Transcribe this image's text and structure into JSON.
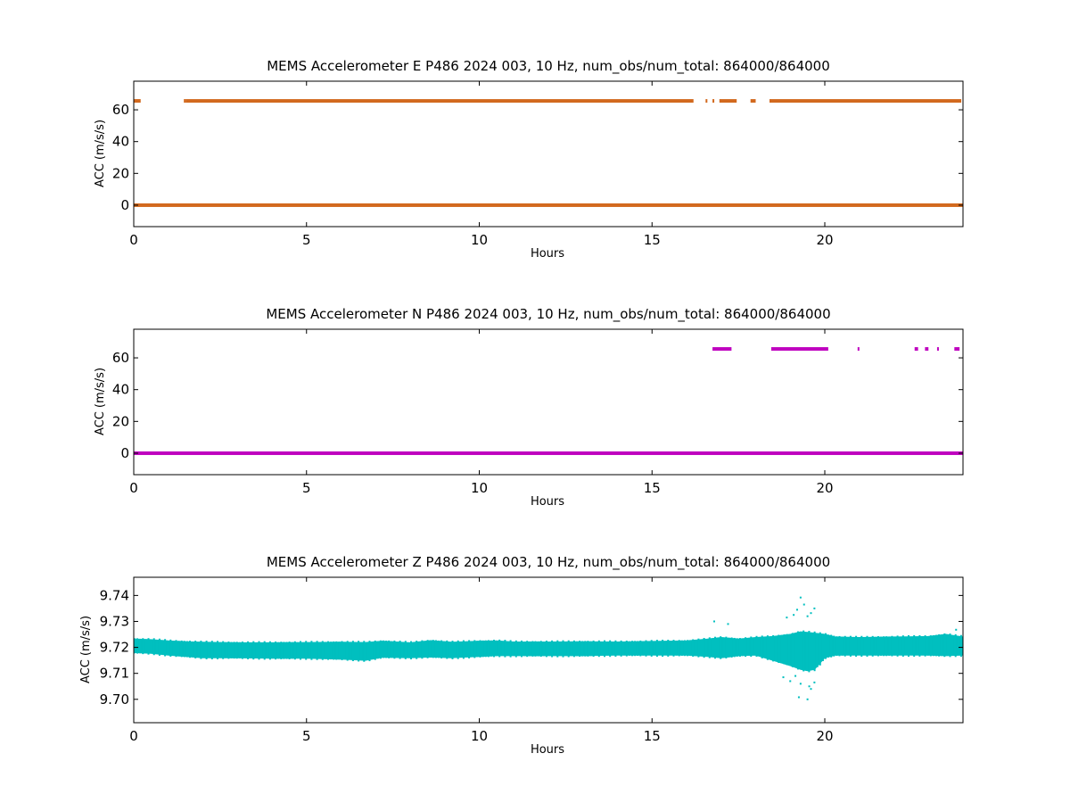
{
  "chart_data": [
    {
      "type": "scatter",
      "title": "MEMS Accelerometer E P486 2024 003, 10 Hz, num_obs/num_total: 864000/864000",
      "xlabel": "Hours",
      "ylabel": "ACC (m/s/s)",
      "xlim": [
        0,
        24
      ],
      "ylim": [
        -13.5,
        78
      ],
      "xticks": [
        "0",
        "5",
        "10",
        "15",
        "20"
      ],
      "yticks": [
        "0",
        "20",
        "40",
        "60"
      ],
      "grid": false,
      "color": "#d2691e",
      "series": [
        {
          "description": "baseline band",
          "segments": [
            {
              "x": [
                0,
                24
              ],
              "y": 0.0
            }
          ]
        },
        {
          "description": "upper band",
          "segments": [
            {
              "x": [
                0.0,
                0.2
              ],
              "y": 65.6
            },
            {
              "x": [
                1.45,
                1.5
              ],
              "y": 65.6
            },
            {
              "x": [
                1.5,
                16.2
              ],
              "y": 65.6
            },
            {
              "x": [
                16.55,
                16.6
              ],
              "y": 65.6
            },
            {
              "x": [
                16.75,
                16.8
              ],
              "y": 65.6
            },
            {
              "x": [
                16.95,
                17.45
              ],
              "y": 65.6
            },
            {
              "x": [
                17.85,
                18.0
              ],
              "y": 65.6
            },
            {
              "x": [
                18.4,
                23.95
              ],
              "y": 65.6
            }
          ]
        }
      ]
    },
    {
      "type": "scatter",
      "title": "MEMS Accelerometer N P486 2024 003, 10 Hz, num_obs/num_total: 864000/864000",
      "xlabel": "Hours",
      "ylabel": "ACC (m/s/s)",
      "xlim": [
        0,
        24
      ],
      "ylim": [
        -13.5,
        78
      ],
      "xticks": [
        "0",
        "5",
        "10",
        "15",
        "20"
      ],
      "yticks": [
        "0",
        "20",
        "40",
        "60"
      ],
      "grid": false,
      "color": "#bf00bf",
      "series": [
        {
          "description": "baseline band",
          "segments": [
            {
              "x": [
                0,
                24
              ],
              "y": 0.0
            }
          ]
        },
        {
          "description": "upper points",
          "segments": [
            {
              "x": [
                16.75,
                17.3
              ],
              "y": 65.6
            },
            {
              "x": [
                18.45,
                20.1
              ],
              "y": 65.6
            },
            {
              "x": [
                20.95,
                21.0
              ],
              "y": 65.6
            },
            {
              "x": [
                22.6,
                22.7
              ],
              "y": 65.6
            },
            {
              "x": [
                22.9,
                23.0
              ],
              "y": 65.6
            },
            {
              "x": [
                23.25,
                23.3
              ],
              "y": 65.6
            },
            {
              "x": [
                23.75,
                23.9
              ],
              "y": 65.6
            }
          ]
        }
      ]
    },
    {
      "type": "area",
      "title": "MEMS Accelerometer Z P486 2024 003, 10 Hz, num_obs/num_total: 864000/864000",
      "xlabel": "Hours",
      "ylabel": "ACC (m/s/s)",
      "xlim": [
        0,
        24
      ],
      "ylim": [
        9.691,
        9.747
      ],
      "xticks": [
        "0",
        "5",
        "10",
        "15",
        "20"
      ],
      "yticks": [
        "9.70",
        "9.71",
        "9.72",
        "9.73",
        "9.74"
      ],
      "grid": false,
      "color": "#00bfbf",
      "series": [
        {
          "description": "data envelope",
          "x": [
            0,
            0.5,
            1,
            1.5,
            2,
            3,
            4,
            5,
            6,
            6.7,
            7.2,
            8,
            8.6,
            9.2,
            10,
            10.5,
            11,
            12,
            13,
            14,
            15,
            16,
            16.6,
            17,
            17.5,
            18,
            18.5,
            19,
            19.3,
            19.5,
            19.7,
            20,
            20.3,
            21,
            22,
            23,
            23.5,
            24
          ],
          "upper": [
            9.7232,
            9.723,
            9.7225,
            9.7222,
            9.722,
            9.7218,
            9.7218,
            9.7219,
            9.722,
            9.7219,
            9.7224,
            9.7218,
            9.7226,
            9.722,
            9.7224,
            9.7225,
            9.7221,
            9.7221,
            9.7222,
            9.7221,
            9.7223,
            9.7225,
            9.7232,
            9.7238,
            9.7232,
            9.7238,
            9.7242,
            9.725,
            9.726,
            9.7258,
            9.7255,
            9.725,
            9.724,
            9.7238,
            9.724,
            9.7242,
            9.725,
            9.724
          ],
          "lower": [
            9.718,
            9.7177,
            9.717,
            9.7165,
            9.716,
            9.716,
            9.7158,
            9.7158,
            9.7155,
            9.715,
            9.7162,
            9.716,
            9.7163,
            9.716,
            9.7165,
            9.7168,
            9.7168,
            9.7168,
            9.7168,
            9.717,
            9.717,
            9.717,
            9.7165,
            9.716,
            9.7168,
            9.717,
            9.715,
            9.713,
            9.7115,
            9.711,
            9.7115,
            9.716,
            9.717,
            9.717,
            9.717,
            9.717,
            9.7168,
            9.717
          ]
        },
        {
          "description": "outlier points",
          "points": [
            [
              19.3,
              9.7392
            ],
            [
              19.4,
              9.7365
            ],
            [
              19.2,
              9.7345
            ],
            [
              19.7,
              9.735
            ],
            [
              19.6,
              9.7332
            ],
            [
              19.1,
              9.7325
            ],
            [
              19.5,
              9.732
            ],
            [
              18.9,
              9.7315
            ],
            [
              16.8,
              9.73
            ],
            [
              17.2,
              9.729
            ],
            [
              19.25,
              9.7008
            ],
            [
              19.5,
              9.7
            ],
            [
              19.6,
              9.704
            ],
            [
              19.3,
              9.706
            ],
            [
              19.0,
              9.707
            ],
            [
              19.7,
              9.7065
            ],
            [
              18.8,
              9.7085
            ],
            [
              19.55,
              9.705
            ],
            [
              19.15,
              9.709
            ],
            [
              23.8,
              9.7268
            ]
          ]
        }
      ]
    }
  ]
}
